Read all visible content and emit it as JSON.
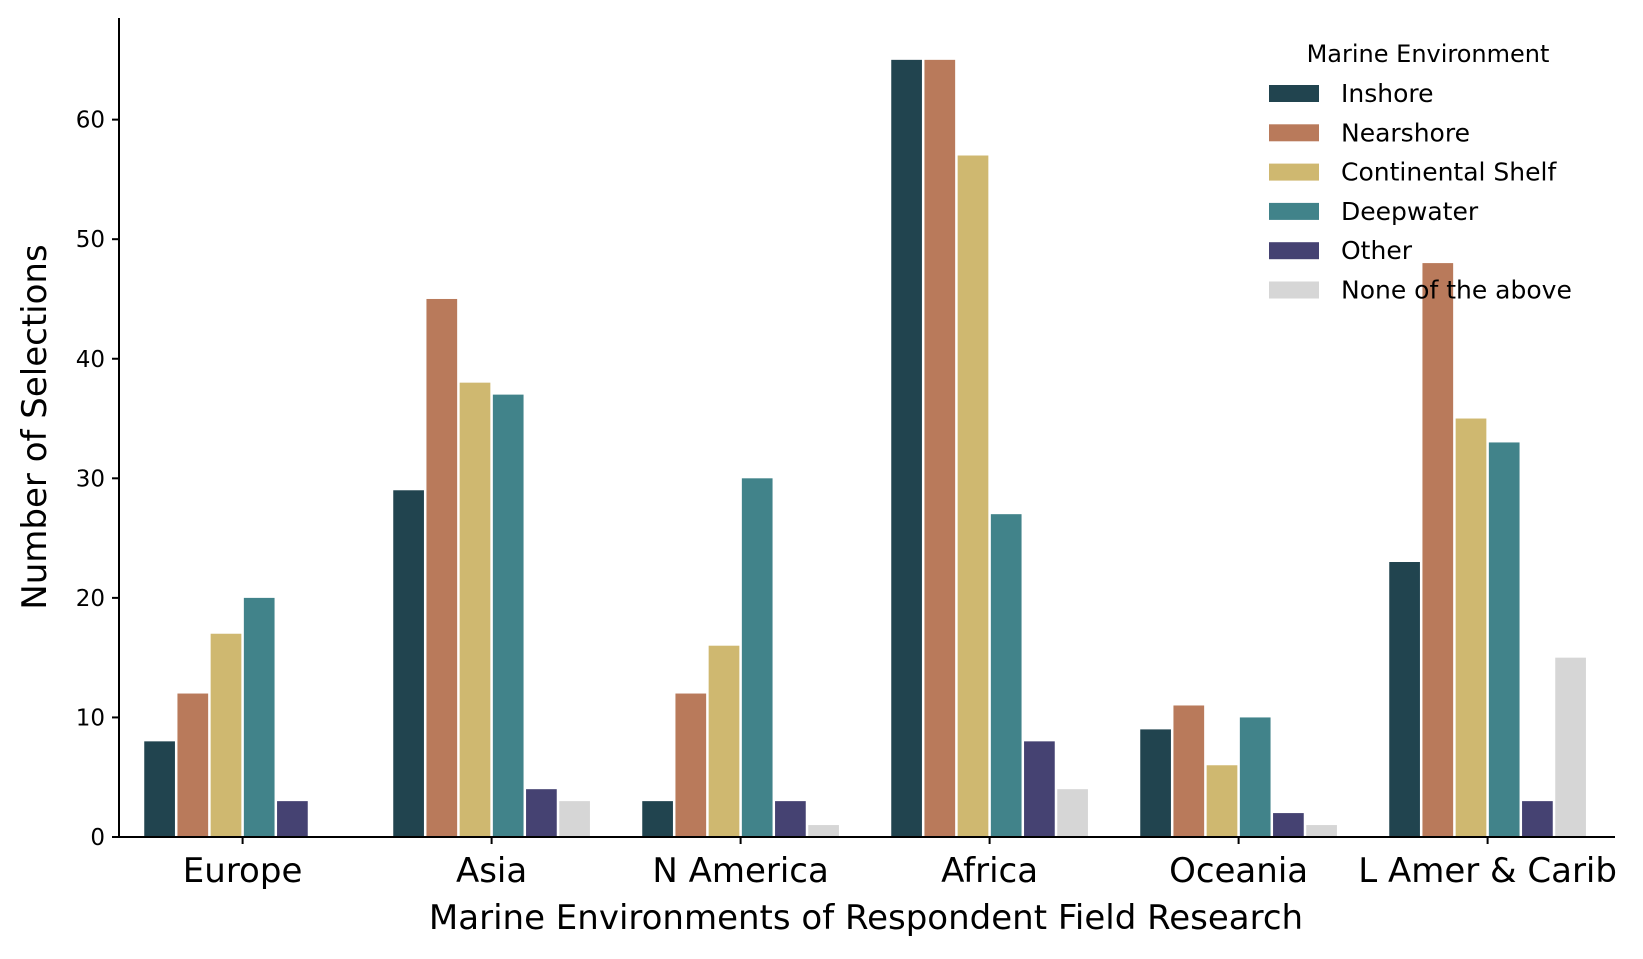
{
  "chart_data": {
    "type": "bar",
    "title": "",
    "xlabel": "Marine Environments of Respondent Field Research",
    "ylabel": "Number of Selections",
    "ylim": [
      0,
      68.5
    ],
    "yticks": [
      0,
      10,
      20,
      30,
      40,
      50,
      60
    ],
    "grid": false,
    "legend_position": "top-right",
    "legend_title": "Marine Environment",
    "categories": [
      "Europe",
      "Asia",
      "N America",
      "Africa",
      "Oceania",
      "L Amer & Carib"
    ],
    "series": [
      {
        "name": "Inshore",
        "color": "#21444f",
        "values": [
          8,
          29,
          3,
          65,
          9,
          23
        ]
      },
      {
        "name": "Nearshore",
        "color": "#b97a5b",
        "values": [
          12,
          45,
          12,
          65,
          11,
          48
        ]
      },
      {
        "name": "Continental Shelf",
        "color": "#cfb870",
        "values": [
          17,
          38,
          16,
          57,
          6,
          35
        ]
      },
      {
        "name": "Deepwater",
        "color": "#41838a",
        "values": [
          20,
          37,
          30,
          27,
          10,
          33
        ]
      },
      {
        "name": "Other",
        "color": "#454272",
        "values": [
          3,
          4,
          3,
          8,
          2,
          3
        ]
      },
      {
        "name": "None of the above",
        "color": "#d6d6d6",
        "values": [
          0,
          3,
          1,
          4,
          1,
          15
        ]
      }
    ]
  }
}
